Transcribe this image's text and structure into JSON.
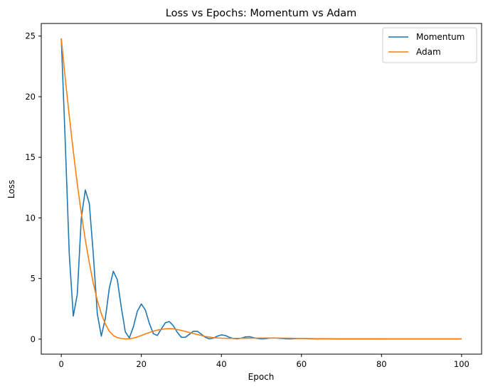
{
  "chart_data": {
    "type": "line",
    "title": "Loss vs Epochs: Momentum vs Adam",
    "xlabel": "Epoch",
    "ylabel": "Loss",
    "xlim": [
      -5,
      105
    ],
    "ylim": [
      -1.24,
      26.04
    ],
    "xticks": [
      0,
      20,
      40,
      60,
      80,
      100
    ],
    "yticks": [
      0,
      5,
      10,
      15,
      20,
      25
    ],
    "grid": false,
    "legend_position": "top-right",
    "series": [
      {
        "name": "Momentum",
        "color": "#1f77b4",
        "x": [
          0,
          1,
          2,
          3,
          4,
          5,
          6,
          7,
          8,
          9,
          10,
          11,
          12,
          13,
          14,
          15,
          16,
          17,
          18,
          19,
          20,
          21,
          22,
          23,
          24,
          25,
          26,
          27,
          28,
          29,
          30,
          31,
          32,
          33,
          34,
          35,
          36,
          37,
          38,
          39,
          40,
          41,
          42,
          43,
          44,
          45,
          46,
          47,
          48,
          49,
          50,
          51,
          52,
          53,
          54,
          55,
          56,
          57,
          58,
          59,
          60,
          62,
          64,
          66,
          68,
          70,
          72,
          74,
          76,
          78,
          80,
          82,
          84,
          86,
          88,
          90,
          92,
          94,
          96,
          98,
          100
        ],
        "y": [
          24.8,
          16.2,
          7.0,
          1.9,
          3.7,
          10.0,
          12.3,
          11.2,
          7.0,
          2.1,
          0.25,
          1.7,
          4.2,
          5.6,
          4.9,
          2.6,
          0.6,
          0.1,
          1.0,
          2.3,
          2.9,
          2.4,
          1.3,
          0.45,
          0.3,
          0.85,
          1.35,
          1.45,
          1.1,
          0.55,
          0.15,
          0.15,
          0.4,
          0.65,
          0.65,
          0.4,
          0.15,
          0.02,
          0.08,
          0.25,
          0.35,
          0.3,
          0.15,
          0.05,
          0.02,
          0.08,
          0.18,
          0.2,
          0.12,
          0.05,
          0.02,
          0.03,
          0.08,
          0.1,
          0.08,
          0.05,
          0.03,
          0.02,
          0.03,
          0.05,
          0.05,
          0.03,
          0.02,
          0.03,
          0.02,
          0.02,
          0.02,
          0.02,
          0.02,
          0.02,
          0.02,
          0.02,
          0.02,
          0.02,
          0.02,
          0.02,
          0.02,
          0.02,
          0.02,
          0.02,
          0.02
        ]
      },
      {
        "name": "Adam",
        "color": "#ff7f0e",
        "x": [
          0,
          1,
          2,
          3,
          4,
          5,
          6,
          7,
          8,
          9,
          10,
          11,
          12,
          13,
          14,
          15,
          16,
          17,
          18,
          19,
          20,
          22,
          24,
          26,
          27,
          28,
          30,
          32,
          34,
          36,
          38,
          40,
          42,
          44,
          46,
          48,
          50,
          52,
          54,
          56,
          58,
          60,
          62,
          64,
          66,
          68,
          70,
          72,
          74,
          76,
          78,
          80,
          82,
          84,
          86,
          88,
          90,
          92,
          94,
          96,
          98,
          100
        ],
        "y": [
          24.8,
          21.5,
          18.4,
          15.5,
          12.8,
          10.4,
          8.2,
          6.3,
          4.6,
          3.2,
          2.1,
          1.25,
          0.65,
          0.3,
          0.12,
          0.05,
          0.02,
          0.03,
          0.08,
          0.18,
          0.3,
          0.55,
          0.75,
          0.85,
          0.87,
          0.85,
          0.72,
          0.55,
          0.38,
          0.22,
          0.12,
          0.08,
          0.06,
          0.06,
          0.07,
          0.08,
          0.09,
          0.09,
          0.09,
          0.08,
          0.07,
          0.05,
          0.05,
          0.04,
          0.04,
          0.03,
          0.03,
          0.03,
          0.03,
          0.03,
          0.03,
          0.03,
          0.02,
          0.02,
          0.02,
          0.02,
          0.02,
          0.02,
          0.02,
          0.02,
          0.02,
          0.02
        ]
      }
    ]
  }
}
